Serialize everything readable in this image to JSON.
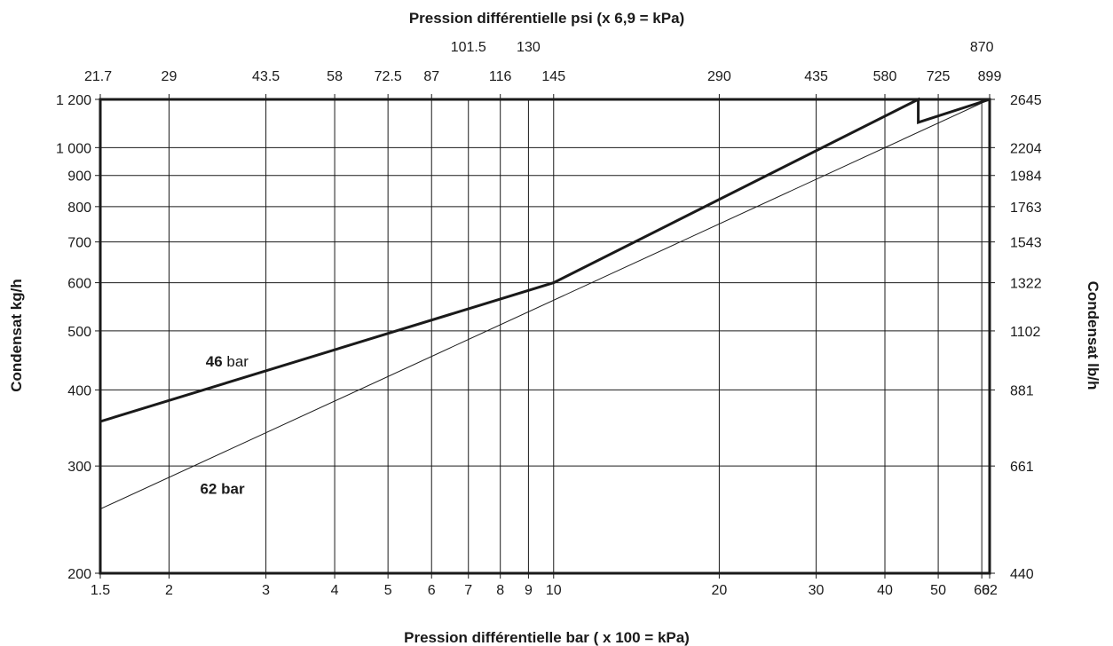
{
  "chart_data": {
    "type": "line",
    "x_scale": "log",
    "y_scale": "log",
    "xlim": [
      1.5,
      62
    ],
    "ylim": [
      200,
      1200
    ],
    "grid": true,
    "xlabel": "Pression différentielle bar ( x 100 = kPa)",
    "x2label": "Pression différentielle psi (x 6,9 = kPa)",
    "ylabel": "Condensat kg/h",
    "y2label": "Condensat lb/h",
    "x_ticks": [
      {
        "value": 1.5,
        "label": "1.5"
      },
      {
        "value": 2,
        "label": "2"
      },
      {
        "value": 3,
        "label": "3"
      },
      {
        "value": 4,
        "label": "4"
      },
      {
        "value": 5,
        "label": "5"
      },
      {
        "value": 6,
        "label": "6"
      },
      {
        "value": 7,
        "label": "7"
      },
      {
        "value": 8,
        "label": "8"
      },
      {
        "value": 9,
        "label": "9"
      },
      {
        "value": 10,
        "label": "10"
      },
      {
        "value": 20,
        "label": "20"
      },
      {
        "value": 30,
        "label": "30"
      },
      {
        "value": 40,
        "label": "40"
      },
      {
        "value": 50,
        "label": "50"
      },
      {
        "value": 60,
        "label": "60"
      },
      {
        "value": 62,
        "label": "62"
      }
    ],
    "x2_ticks_upper": [
      {
        "value": 7,
        "label": "101.5"
      },
      {
        "value": 9,
        "label": "130"
      },
      {
        "value": 60,
        "label": "870"
      }
    ],
    "x2_ticks_lower": [
      {
        "value": 1.5,
        "label": "21.7"
      },
      {
        "value": 2,
        "label": "29"
      },
      {
        "value": 3,
        "label": "43.5"
      },
      {
        "value": 4,
        "label": "58"
      },
      {
        "value": 5,
        "label": "72.5"
      },
      {
        "value": 6,
        "label": "87"
      },
      {
        "value": 8,
        "label": "116"
      },
      {
        "value": 10,
        "label": "145"
      },
      {
        "value": 20,
        "label": "290"
      },
      {
        "value": 30,
        "label": "435"
      },
      {
        "value": 40,
        "label": "580"
      },
      {
        "value": 50,
        "label": "725"
      },
      {
        "value": 62,
        "label": "899"
      }
    ],
    "y_ticks": [
      {
        "value": 200,
        "label": "200"
      },
      {
        "value": 300,
        "label": "300"
      },
      {
        "value": 400,
        "label": "400"
      },
      {
        "value": 500,
        "label": "500"
      },
      {
        "value": 600,
        "label": "600"
      },
      {
        "value": 700,
        "label": "700"
      },
      {
        "value": 800,
        "label": "800"
      },
      {
        "value": 900,
        "label": "900"
      },
      {
        "value": 1000,
        "label": "1 000"
      },
      {
        "value": 1200,
        "label": "1 200"
      }
    ],
    "y2_ticks": [
      {
        "value": 200,
        "label": "440"
      },
      {
        "value": 300,
        "label": "661"
      },
      {
        "value": 400,
        "label": "881"
      },
      {
        "value": 500,
        "label": "1102"
      },
      {
        "value": 600,
        "label": "1322"
      },
      {
        "value": 700,
        "label": "1543"
      },
      {
        "value": 800,
        "label": "1763"
      },
      {
        "value": 900,
        "label": "1984"
      },
      {
        "value": 1000,
        "label": "2204"
      },
      {
        "value": 1200,
        "label": "2645"
      }
    ],
    "series": [
      {
        "name": "46 bar",
        "label_value": "46",
        "label_unit": "bar",
        "label_at": {
          "x": 2.55,
          "y": 437
        },
        "color": "#1a1a1a",
        "points": [
          {
            "x": 1.5,
            "y": 355
          },
          {
            "x": 10,
            "y": 600
          },
          {
            "x": 46,
            "y": 1200
          },
          {
            "x": 46,
            "y": 1100
          },
          {
            "x": 62,
            "y": 1200
          }
        ]
      },
      {
        "name": "62 bar",
        "label_value": "62",
        "label_unit": "bar",
        "label_at": {
          "x": 2.5,
          "y": 270
        },
        "color": "#1a1a1a",
        "points": [
          {
            "x": 1.5,
            "y": 255
          },
          {
            "x": 62,
            "y": 1200
          }
        ]
      }
    ]
  }
}
